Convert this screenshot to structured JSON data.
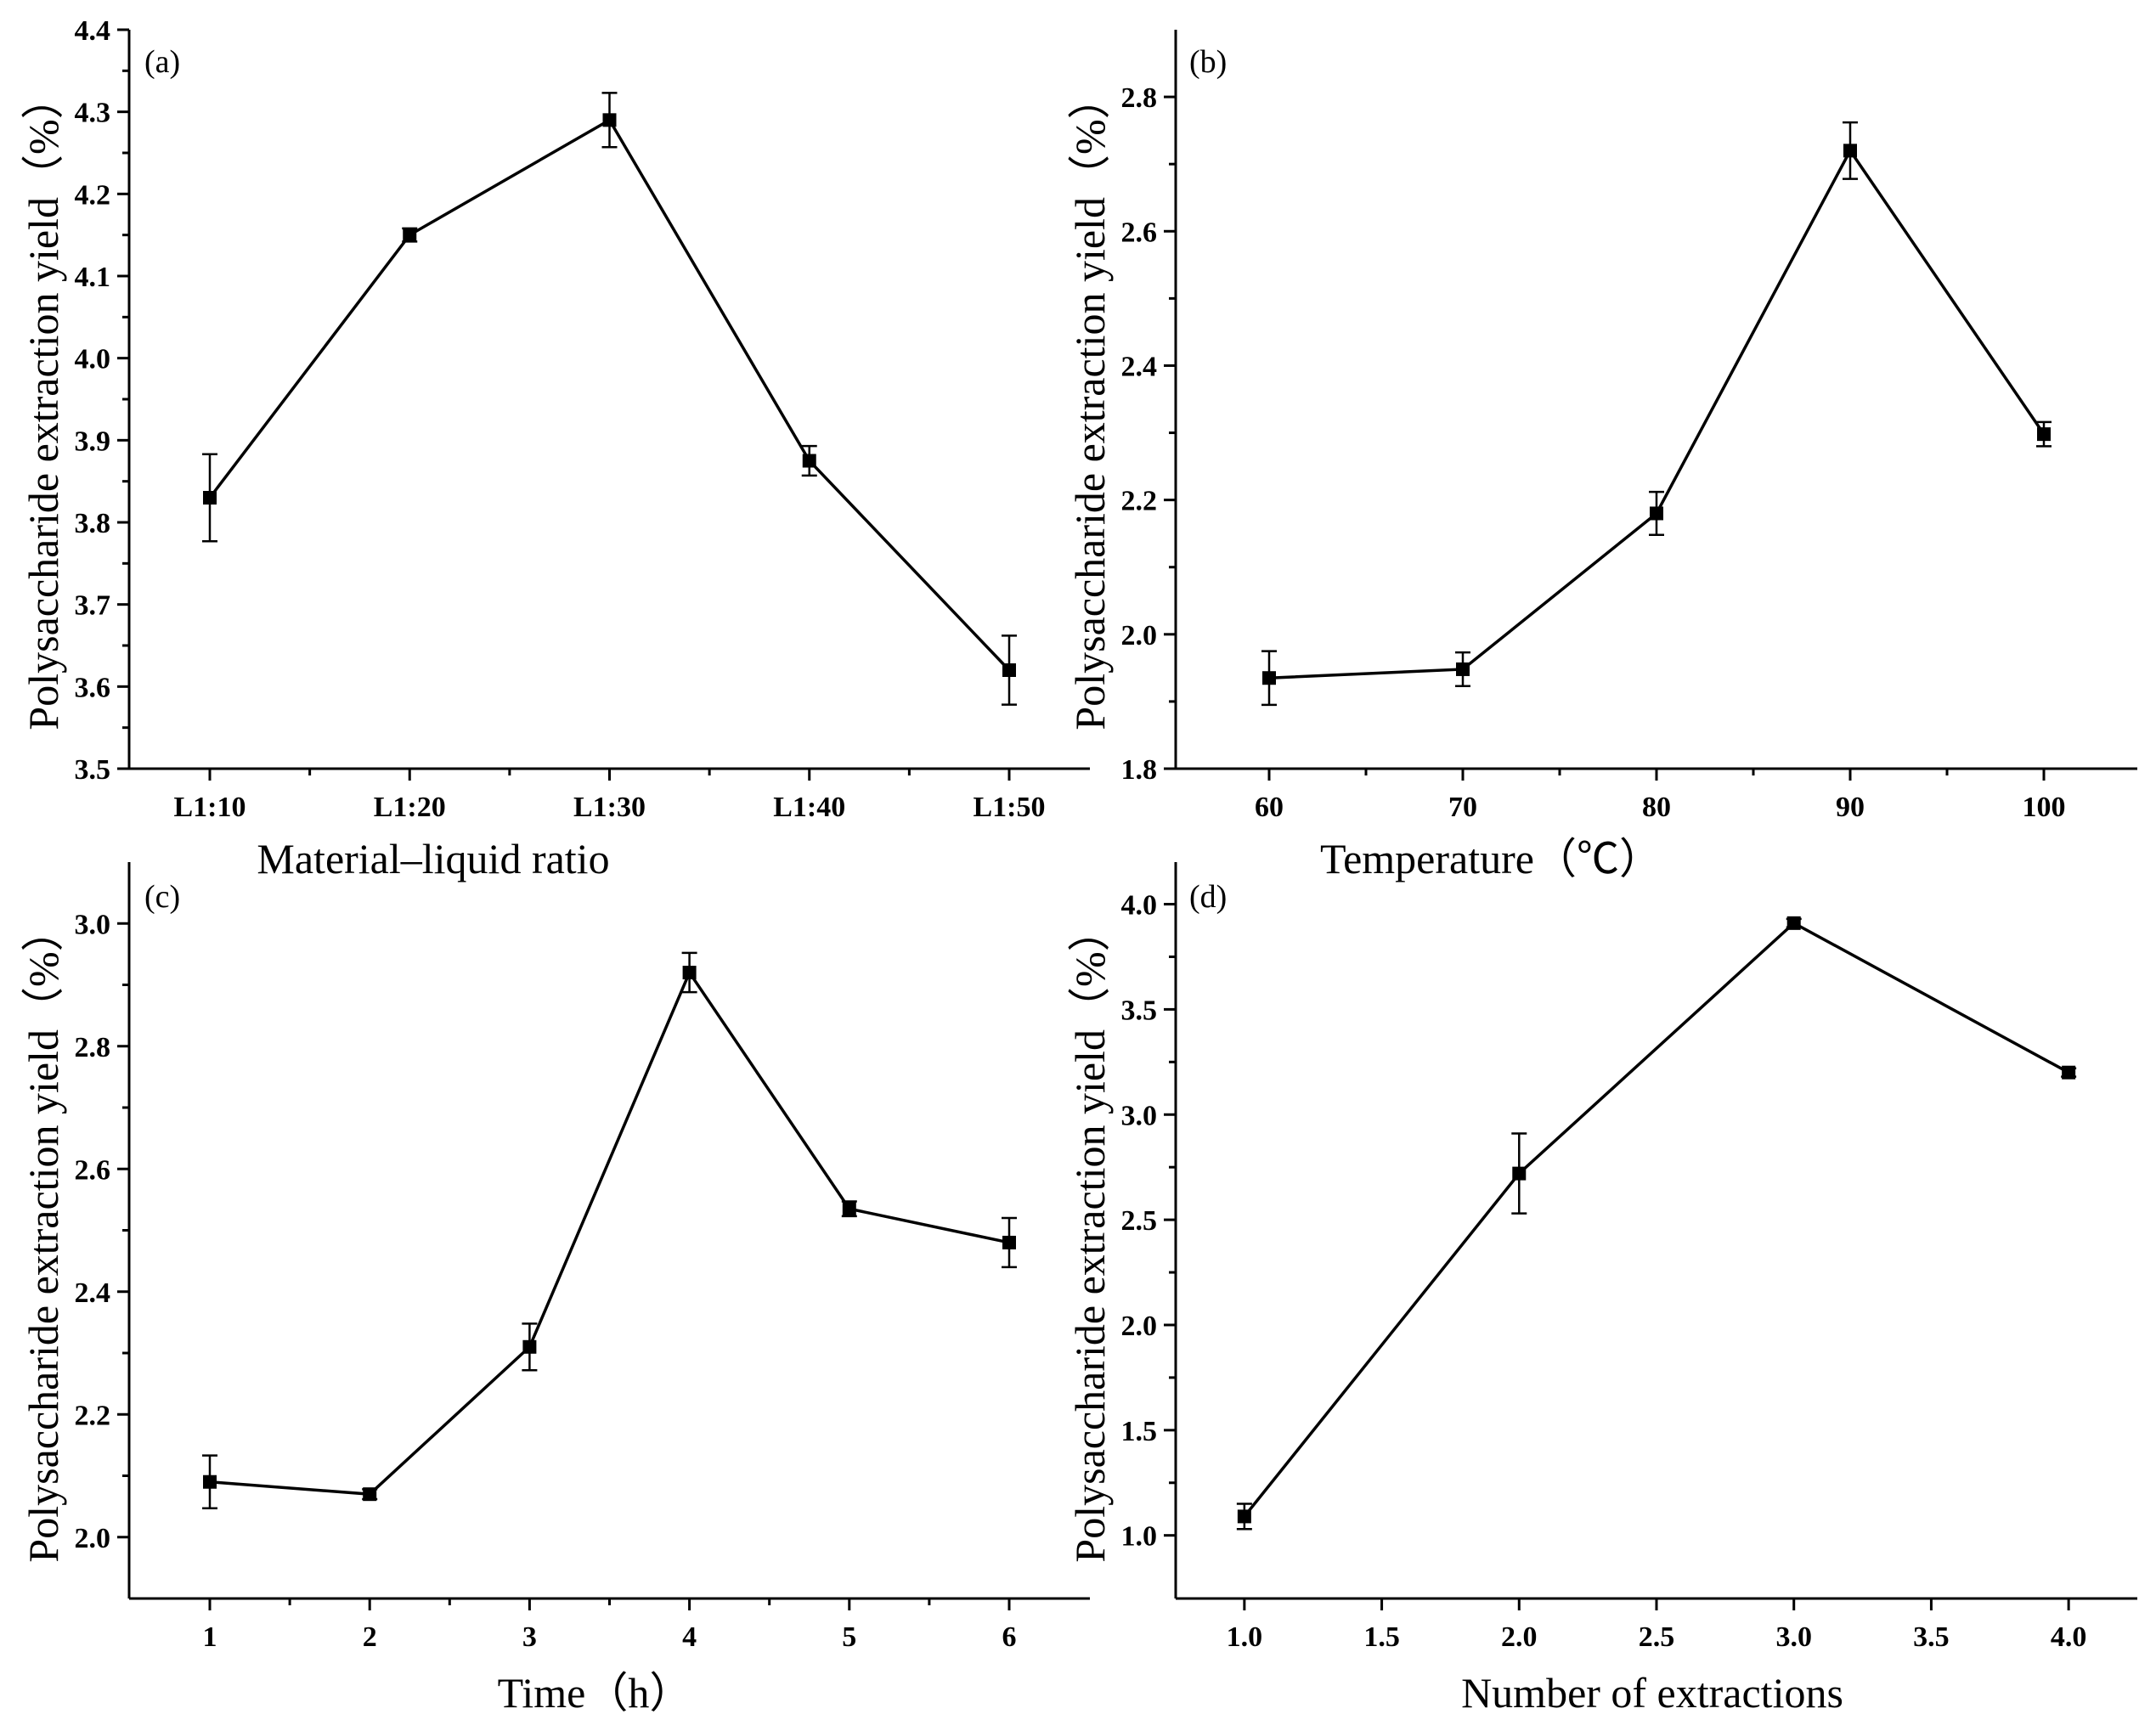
{
  "chart_data": [
    {
      "type": "line",
      "panel_label": "(a)",
      "title": "",
      "xlabel": "Material–liquid ratio",
      "ylabel": "Polysaccharide extraction yield（%）",
      "x_kind": "category",
      "categories": [
        "L1:10",
        "L1:20",
        "L1:30",
        "L1:40",
        "L1:50"
      ],
      "values": [
        3.83,
        4.15,
        4.29,
        3.875,
        3.62
      ],
      "errors": [
        0.053,
        0.008,
        0.033,
        0.018,
        0.042
      ],
      "ylim": [
        3.5,
        4.4
      ],
      "yticks": [
        "3.5",
        "3.6",
        "3.7",
        "3.8",
        "3.9",
        "4.0",
        "4.1",
        "4.2",
        "4.3",
        "4.4"
      ]
    },
    {
      "type": "line",
      "panel_label": "(b)",
      "title": "",
      "xlabel": "Temperature（℃）",
      "ylabel": "Polysaccharide extraction yield（%）",
      "x_kind": "category",
      "categories": [
        "60",
        "70",
        "80",
        "90",
        "100"
      ],
      "values": [
        1.935,
        1.948,
        2.18,
        2.72,
        2.298
      ],
      "errors": [
        0.04,
        0.025,
        0.032,
        0.042,
        0.018
      ],
      "ylim": [
        1.8,
        2.9
      ],
      "yticks": [
        "1.8",
        "2.0",
        "2.2",
        "2.4",
        "2.6",
        "2.8"
      ]
    },
    {
      "type": "line",
      "panel_label": "(c)",
      "title": "",
      "xlabel": "Time（h）",
      "ylabel": "Polysaccharide extraction yield（%）",
      "x_kind": "category",
      "categories": [
        "1",
        "2",
        "3",
        "4",
        "5",
        "6"
      ],
      "values": [
        2.09,
        2.07,
        2.31,
        2.92,
        2.535,
        2.48
      ],
      "errors": [
        0.043,
        0.008,
        0.038,
        0.032,
        0.012,
        0.04
      ],
      "ylim": [
        1.9,
        3.1
      ],
      "yticks": [
        "2.0",
        "2.2",
        "2.4",
        "2.6",
        "2.8",
        "3.0"
      ]
    },
    {
      "type": "line",
      "panel_label": "(d)",
      "title": "",
      "xlabel": "Number of extractions",
      "ylabel": "Polysaccharide extraction yield（%）",
      "x_kind": "numeric",
      "x": [
        1.0,
        2.0,
        3.0,
        4.0
      ],
      "values": [
        1.09,
        2.72,
        3.91,
        3.2
      ],
      "errors": [
        0.06,
        0.19,
        0.02,
        0.02
      ],
      "xlim": [
        0.75,
        4.25
      ],
      "xticks": [
        1.0,
        1.5,
        2.0,
        2.5,
        3.0,
        3.5,
        4.0
      ],
      "xtick_labels": [
        "1.0",
        "1.5",
        "2.0",
        "2.5",
        "3.0",
        "3.5",
        "4.0"
      ],
      "ylim": [
        0.7,
        4.2
      ],
      "yticks": [
        "1.0",
        "1.5",
        "2.0",
        "2.5",
        "3.0",
        "3.5",
        "4.0"
      ]
    }
  ]
}
